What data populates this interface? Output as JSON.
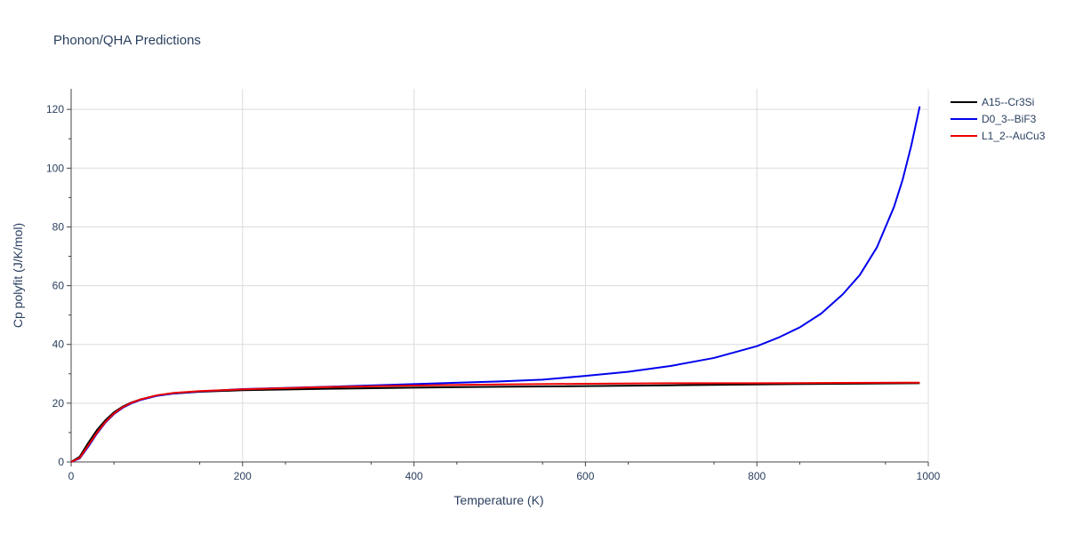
{
  "chart_data": {
    "type": "line",
    "title": "Phonon/QHA Predictions",
    "xlabel": "Temperature (K)",
    "ylabel": "Cp polyfit (J/K/mol)",
    "xlim": [
      0,
      1000
    ],
    "ylim": [
      0,
      127
    ],
    "xticks": [
      0,
      200,
      400,
      600,
      800,
      1000
    ],
    "yticks": [
      0,
      20,
      40,
      60,
      80,
      100,
      120
    ],
    "grid": true,
    "legend_position": "top-right",
    "series": [
      {
        "name": "A15--Cr3Si",
        "color": "#000000",
        "x": [
          0,
          10,
          20,
          30,
          40,
          50,
          60,
          70,
          80,
          100,
          120,
          150,
          200,
          300,
          400,
          500,
          600,
          700,
          800,
          900,
          990
        ],
        "y": [
          0,
          1.8,
          6.5,
          10.8,
          14.2,
          16.9,
          18.8,
          20.2,
          21.2,
          22.6,
          23.3,
          23.9,
          24.4,
          24.9,
          25.3,
          25.6,
          25.8,
          26.1,
          26.4,
          26.6,
          26.8
        ]
      },
      {
        "name": "D0_3--BiF3",
        "color": "#0000ee",
        "x": [
          0,
          10,
          20,
          30,
          40,
          50,
          60,
          70,
          80,
          100,
          120,
          150,
          200,
          300,
          400,
          500,
          550,
          600,
          650,
          700,
          750,
          800,
          825,
          850,
          875,
          900,
          920,
          940,
          960,
          970,
          980,
          990
        ],
        "y": [
          0,
          1.2,
          5.2,
          9.6,
          13.4,
          16.3,
          18.4,
          19.9,
          21.0,
          22.5,
          23.3,
          24.0,
          24.8,
          25.6,
          26.5,
          27.4,
          28.0,
          29.3,
          30.7,
          32.7,
          35.4,
          39.4,
          42.3,
          45.8,
          50.5,
          57.0,
          63.6,
          73.0,
          86.8,
          96.0,
          107.5,
          121.0
        ]
      },
      {
        "name": "L1_2--AuCu3",
        "color": "#ee0000",
        "x": [
          0,
          10,
          20,
          30,
          40,
          50,
          60,
          70,
          80,
          100,
          120,
          150,
          200,
          300,
          400,
          500,
          600,
          700,
          800,
          900,
          990
        ],
        "y": [
          0,
          1.4,
          5.6,
          9.9,
          13.6,
          16.5,
          18.6,
          20.1,
          21.2,
          22.7,
          23.5,
          24.1,
          24.7,
          25.5,
          26.0,
          26.4,
          26.6,
          26.8,
          26.8,
          26.9,
          27.0
        ]
      }
    ]
  }
}
